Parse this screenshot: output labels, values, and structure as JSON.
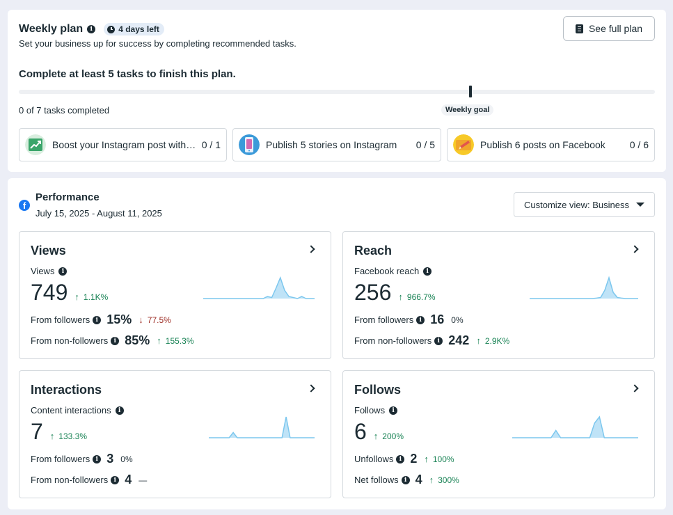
{
  "weekly_plan": {
    "title": "Weekly plan",
    "days_left": "4 days left",
    "subtitle": "Set your business up for success by completing recommended tasks.",
    "see_full_plan": "See full plan",
    "goal_text": "Complete at least 5 tasks to finish this plan.",
    "tasks_completed": "0 of 7 tasks completed",
    "progress_fraction": 0,
    "weekly_goal_label": "Weekly goal",
    "tasks": [
      {
        "label": "Boost your Instagram post with an ad",
        "count": "0 / 1",
        "icon": "chart-up-icon"
      },
      {
        "label": "Publish 5 stories on Instagram",
        "count": "0 / 5",
        "icon": "phone-stories-icon"
      },
      {
        "label": "Publish 6 posts on Facebook",
        "count": "0 / 6",
        "icon": "pencil-post-icon"
      }
    ]
  },
  "performance": {
    "title": "Performance",
    "dates": "July 15, 2025 - August 11, 2025",
    "customize": "Customize view: Business",
    "cards": [
      {
        "title": "Views",
        "label": "Views",
        "value": "749",
        "delta": "1.1K%",
        "delta_dir": "up",
        "rows": [
          {
            "label": "From followers",
            "num": "15%",
            "delta": "77.5%",
            "dir": "down"
          },
          {
            "label": "From non-followers",
            "num": "85%",
            "delta": "155.3%",
            "dir": "up"
          }
        ],
        "spark": [
          0,
          0,
          0,
          0,
          0,
          0,
          0,
          0,
          0,
          0,
          0,
          0,
          0,
          0,
          0,
          0.1,
          0.05,
          0.5,
          1,
          0.4,
          0.1,
          0.05,
          0,
          0.1,
          0,
          0,
          0
        ]
      },
      {
        "title": "Reach",
        "label": "Facebook reach",
        "value": "256",
        "delta": "966.7%",
        "delta_dir": "up",
        "rows": [
          {
            "label": "From followers",
            "num": "16",
            "delta": "0%",
            "dir": "neutral"
          },
          {
            "label": "From non-followers",
            "num": "242",
            "delta": "2.9K%",
            "dir": "up"
          }
        ],
        "spark": [
          0,
          0,
          0,
          0,
          0,
          0,
          0,
          0,
          0,
          0,
          0,
          0,
          0,
          0,
          0,
          0,
          0.02,
          0.05,
          0.4,
          1,
          0.3,
          0.05,
          0.02,
          0,
          0,
          0,
          0
        ]
      },
      {
        "title": "Interactions",
        "label": "Content interactions",
        "value": "7",
        "delta": "133.3%",
        "delta_dir": "up",
        "rows": [
          {
            "label": "From followers",
            "num": "3",
            "delta": "0%",
            "dir": "neutral"
          },
          {
            "label": "From non-followers",
            "num": "4",
            "delta": "—",
            "dir": "neutral"
          }
        ],
        "spark": [
          0,
          0,
          0,
          0,
          0,
          0,
          0.25,
          0,
          0,
          0,
          0,
          0,
          0,
          0,
          0,
          0,
          0,
          0,
          0,
          1,
          0,
          0,
          0,
          0,
          0,
          0,
          0
        ]
      },
      {
        "title": "Follows",
        "label": "Follows",
        "value": "6",
        "delta": "200%",
        "delta_dir": "up",
        "rows": [
          {
            "label": "Unfollows",
            "num": "2",
            "delta": "100%",
            "dir": "up"
          },
          {
            "label": "Net follows",
            "num": "4",
            "delta": "300%",
            "dir": "up"
          }
        ],
        "spark": [
          0,
          0,
          0,
          0,
          0,
          0,
          0,
          0,
          0,
          0.35,
          0,
          0,
          0,
          0,
          0,
          0,
          0,
          0.7,
          1,
          0,
          0,
          0,
          0,
          0,
          0,
          0,
          0
        ]
      }
    ]
  }
}
